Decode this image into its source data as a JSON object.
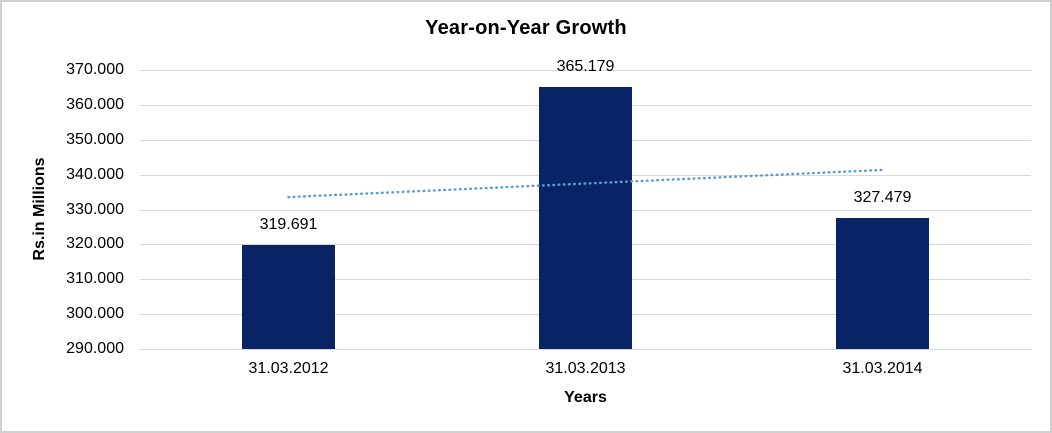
{
  "chart_data": {
    "type": "bar",
    "title": "Year-on-Year Growth",
    "xlabel": "Years",
    "ylabel": "Rs.in Millions",
    "categories": [
      "31.03.2012",
      "31.03.2013",
      "31.03.2014"
    ],
    "values": [
      319691,
      365179,
      327479
    ],
    "data_labels": [
      "319.691",
      "365.179",
      "327.479"
    ],
    "ylim": [
      290000,
      370000
    ],
    "ytick_step": 10000,
    "yticks": [
      {
        "value": 290000,
        "label": "290.000"
      },
      {
        "value": 300000,
        "label": "300.000"
      },
      {
        "value": 310000,
        "label": "310.000"
      },
      {
        "value": 320000,
        "label": "320.000"
      },
      {
        "value": 330000,
        "label": "330.000"
      },
      {
        "value": 340000,
        "label": "340.000"
      },
      {
        "value": 350000,
        "label": "350.000"
      },
      {
        "value": 360000,
        "label": "360.000"
      },
      {
        "value": 370000,
        "label": "370.000"
      }
    ],
    "grid": true,
    "legend": false,
    "bar_color": "#082464",
    "trendline": {
      "type": "linear",
      "style": "dotted",
      "color": "#5B9BD5"
    },
    "colors": {
      "gridline": "#D9D9D9",
      "axis_line": "#D9D9D9",
      "text": "#000000",
      "frame_border": "#D0D0D0",
      "background": "#FFFFFF"
    }
  }
}
